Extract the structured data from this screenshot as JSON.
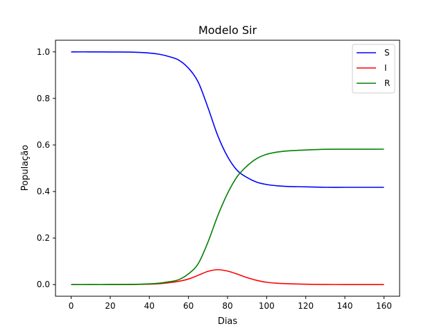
{
  "chart_data": {
    "type": "line",
    "title": "Modelo Sir",
    "xlabel": "Dias",
    "ylabel": "População",
    "xlim": [
      -8,
      168
    ],
    "ylim": [
      -0.05,
      1.05
    ],
    "xticks": [
      0,
      20,
      40,
      60,
      80,
      100,
      120,
      140,
      160
    ],
    "yticks": [
      0.0,
      0.2,
      0.4,
      0.6,
      0.8,
      1.0
    ],
    "grid": false,
    "legend_position": "top-right",
    "x": [
      0,
      10,
      20,
      30,
      40,
      45,
      50,
      55,
      60,
      65,
      70,
      75,
      80,
      85,
      90,
      95,
      100,
      105,
      110,
      120,
      130,
      140,
      150,
      160
    ],
    "series": [
      {
        "name": "S",
        "color": "#0000ff",
        "values": [
          1.0,
          1.0,
          0.9995,
          0.999,
          0.995,
          0.99,
          0.98,
          0.965,
          0.93,
          0.87,
          0.76,
          0.64,
          0.55,
          0.49,
          0.46,
          0.44,
          0.43,
          0.425,
          0.422,
          0.42,
          0.418,
          0.418,
          0.418,
          0.418
        ]
      },
      {
        "name": "I",
        "color": "#ff0000",
        "values": [
          0.0,
          0.0,
          0.0,
          0.0005,
          0.002,
          0.004,
          0.008,
          0.014,
          0.024,
          0.04,
          0.057,
          0.064,
          0.058,
          0.045,
          0.03,
          0.018,
          0.01,
          0.006,
          0.004,
          0.0015,
          0.0005,
          0.0002,
          0.0001,
          0.0
        ]
      },
      {
        "name": "R",
        "color": "#008000",
        "values": [
          0.0,
          0.0,
          0.0005,
          0.0005,
          0.003,
          0.006,
          0.012,
          0.021,
          0.046,
          0.09,
          0.183,
          0.296,
          0.392,
          0.465,
          0.51,
          0.542,
          0.56,
          0.569,
          0.574,
          0.5785,
          0.5815,
          0.5818,
          0.5819,
          0.582
        ]
      }
    ]
  }
}
